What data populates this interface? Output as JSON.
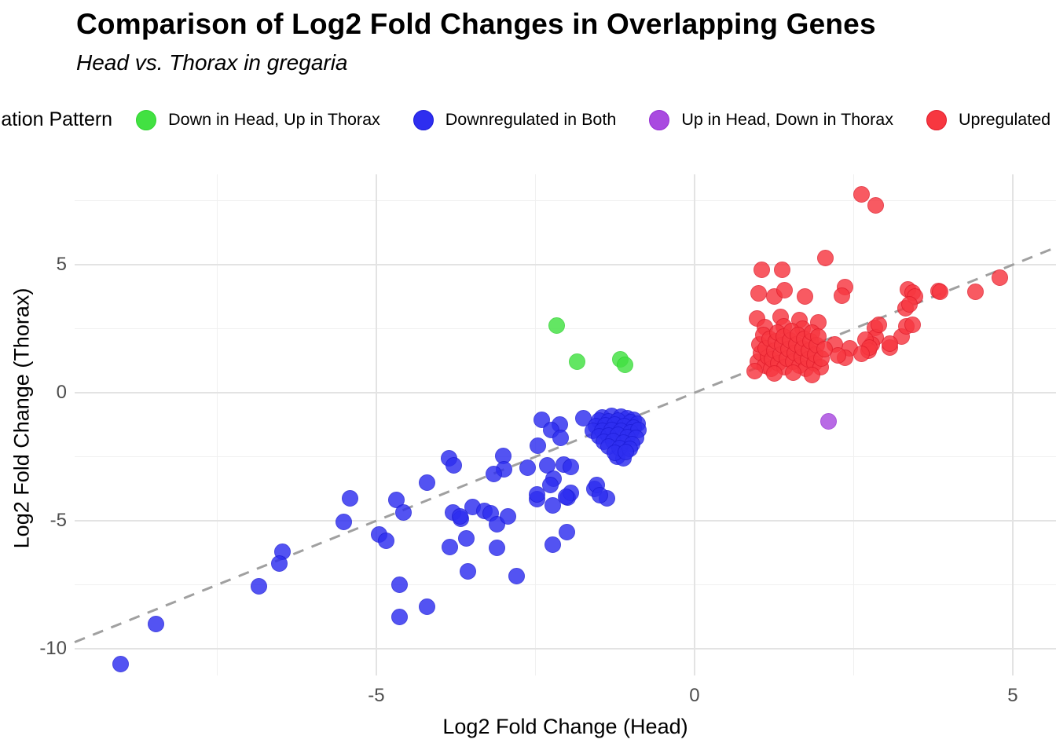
{
  "title": "Comparison of Log2 Fold Changes in Overlapping Genes",
  "subtitle": "Head vs. Thorax in gregaria",
  "legend": {
    "title": "Regulation Pattern",
    "items": [
      {
        "label": "Down in Head, Up in Thorax",
        "color": "#42e142",
        "border": "#2fd32f"
      },
      {
        "label": "Downregulated in Both",
        "color": "#2e2ef0",
        "border": "#1d1dd8"
      },
      {
        "label": "Up in Head, Down in Thorax",
        "color": "#a94ae0",
        "border": "#952fd2"
      },
      {
        "label": "Upregulated in Both",
        "color": "#f73740",
        "border": "#e01d2c"
      }
    ]
  },
  "chart_data": {
    "type": "scatter",
    "title": "Comparison of Log2 Fold Changes in Overlapping Genes",
    "subtitle": "Head vs. Thorax in gregaria",
    "xlabel": "Log2 Fold Change (Head)",
    "ylabel": "Log2 Fold Change (Thorax)",
    "legend_title": "Regulation Pattern",
    "legend_position": "top",
    "grid": "on",
    "xlim": [
      -9.74,
      5.68
    ],
    "ylim": [
      -11.04,
      8.53
    ],
    "x_ticks": [
      -5,
      0,
      5
    ],
    "y_ticks": [
      5,
      0,
      -5,
      -10
    ],
    "x_minor_ticks": [
      -7.5,
      -2.5,
      2.5
    ],
    "y_minor_ticks": [
      7.5,
      2.5,
      -2.5,
      -7.5
    ],
    "reference_line": {
      "type": "identity y=x",
      "style": "dashed",
      "color": "#a0a0a0"
    },
    "point_alpha": 0.82,
    "series": [
      {
        "name": "Down in Head, Up in Thorax",
        "color": "#42e142",
        "points": [
          [
            -2.17,
            2.64
          ],
          [
            -1.85,
            1.2
          ],
          [
            -1.16,
            1.32
          ],
          [
            -1.09,
            1.1
          ]
        ]
      },
      {
        "name": "Downregulated in Both",
        "color": "#2e2ef0",
        "points": [
          [
            -9.02,
            -10.6
          ],
          [
            -8.46,
            -9.02
          ],
          [
            -6.85,
            -7.55
          ],
          [
            -6.48,
            -6.2
          ],
          [
            -6.52,
            -6.68
          ],
          [
            -5.41,
            -4.11
          ],
          [
            -5.51,
            -5.03
          ],
          [
            -4.95,
            -5.52
          ],
          [
            -4.85,
            -5.77
          ],
          [
            -4.69,
            -4.17
          ],
          [
            -4.57,
            -4.66
          ],
          [
            -4.2,
            -3.5
          ],
          [
            -4.2,
            -8.37
          ],
          [
            -4.64,
            -7.49
          ],
          [
            -4.64,
            -8.77
          ],
          [
            -3.86,
            -2.55
          ],
          [
            -3.78,
            -2.85
          ],
          [
            -3.8,
            -4.69
          ],
          [
            -3.67,
            -4.91
          ],
          [
            -3.49,
            -4.45
          ],
          [
            -3.3,
            -4.6
          ],
          [
            -3.85,
            -6.01
          ],
          [
            -3.59,
            -5.7
          ],
          [
            -3.56,
            -6.99
          ],
          [
            -3.69,
            -4.82
          ],
          [
            -3.2,
            -4.72
          ],
          [
            -3.1,
            -5.12
          ],
          [
            -3.1,
            -6.07
          ],
          [
            -2.93,
            -4.82
          ],
          [
            -2.79,
            -7.15
          ],
          [
            -2.48,
            -4.14
          ],
          [
            -2.47,
            -3.96
          ],
          [
            -2.23,
            -4.39
          ],
          [
            -2.23,
            -5.92
          ],
          [
            -2.01,
            -5.43
          ],
          [
            -1.99,
            -4.08
          ],
          [
            -1.37,
            -4.11
          ],
          [
            -1.57,
            -3.77
          ],
          [
            -2.4,
            -1.07
          ],
          [
            -2.12,
            -1.23
          ],
          [
            -2.25,
            -1.44
          ],
          [
            -1.74,
            -0.98
          ],
          [
            -2.11,
            -1.75
          ],
          [
            -2.46,
            -2.06
          ],
          [
            -3.0,
            -2.48
          ],
          [
            -2.99,
            -2.98
          ],
          [
            -3.15,
            -3.16
          ],
          [
            -2.62,
            -2.94
          ],
          [
            -2.31,
            -2.82
          ],
          [
            -2.06,
            -2.79
          ],
          [
            -1.94,
            -2.91
          ],
          [
            -2.21,
            -3.37
          ],
          [
            -2.27,
            -3.59
          ],
          [
            -1.94,
            -3.9
          ],
          [
            -2.02,
            -4.05
          ],
          [
            -1.53,
            -3.59
          ],
          [
            -1.49,
            -3.99
          ],
          [
            -1.22,
            -2.51
          ],
          [
            -1.12,
            -2.55
          ],
          [
            -1.45,
            -0.95
          ],
          [
            -1.3,
            -0.9
          ],
          [
            -1.15,
            -0.92
          ],
          [
            -1.05,
            -1.0
          ],
          [
            -0.95,
            -1.05
          ],
          [
            -1.5,
            -1.1
          ],
          [
            -1.35,
            -1.12
          ],
          [
            -1.2,
            -1.08
          ],
          [
            -1.0,
            -1.15
          ],
          [
            -0.9,
            -1.2
          ],
          [
            -1.55,
            -1.3
          ],
          [
            -1.4,
            -1.28
          ],
          [
            -1.25,
            -1.25
          ],
          [
            -1.1,
            -1.3
          ],
          [
            -0.95,
            -1.35
          ],
          [
            -1.6,
            -1.5
          ],
          [
            -1.45,
            -1.48
          ],
          [
            -1.3,
            -1.45
          ],
          [
            -1.15,
            -1.5
          ],
          [
            -1.0,
            -1.55
          ],
          [
            -0.88,
            -1.45
          ],
          [
            -1.5,
            -1.7
          ],
          [
            -1.35,
            -1.68
          ],
          [
            -1.2,
            -1.65
          ],
          [
            -1.05,
            -1.72
          ],
          [
            -0.92,
            -1.75
          ],
          [
            -1.42,
            -1.9
          ],
          [
            -1.28,
            -1.88
          ],
          [
            -1.12,
            -1.95
          ],
          [
            -0.98,
            -2.0
          ],
          [
            -1.35,
            -2.1
          ],
          [
            -1.18,
            -2.15
          ],
          [
            -1.02,
            -2.2
          ],
          [
            -1.25,
            -2.35
          ],
          [
            -1.08,
            -2.3
          ]
        ]
      },
      {
        "name": "Up in Head, Down in Thorax",
        "color": "#a94ae0",
        "points": [
          [
            2.1,
            -1.13
          ]
        ]
      },
      {
        "name": "Upregulated in Both",
        "color": "#f73740",
        "points": [
          [
            2.63,
            7.76
          ],
          [
            2.85,
            7.33
          ],
          [
            2.06,
            5.25
          ],
          [
            1.06,
            4.79
          ],
          [
            1.38,
            4.79
          ],
          [
            4.8,
            4.51
          ],
          [
            4.41,
            3.93
          ],
          [
            3.83,
            3.96
          ],
          [
            3.35,
            4.05
          ],
          [
            3.43,
            3.9
          ],
          [
            3.31,
            3.31
          ],
          [
            1.01,
            3.87
          ],
          [
            1.25,
            3.77
          ],
          [
            1.41,
            4.02
          ],
          [
            1.73,
            3.77
          ],
          [
            2.36,
            4.14
          ],
          [
            2.31,
            3.8
          ],
          [
            3.46,
            3.77
          ],
          [
            3.38,
            3.44
          ],
          [
            3.86,
            3.93
          ],
          [
            2.84,
            2.52
          ],
          [
            2.85,
            2.18
          ],
          [
            2.79,
            1.9
          ],
          [
            2.69,
            2.06
          ],
          [
            2.74,
            1.63
          ],
          [
            3.07,
            1.78
          ],
          [
            3.26,
            2.21
          ],
          [
            3.33,
            2.58
          ],
          [
            3.43,
            2.67
          ],
          [
            2.9,
            2.67
          ],
          [
            3.07,
            1.93
          ],
          [
            2.75,
            1.78
          ],
          [
            2.44,
            1.75
          ],
          [
            2.37,
            1.38
          ],
          [
            2.63,
            1.53
          ],
          [
            0.98,
            2.9
          ],
          [
            1.35,
            2.95
          ],
          [
            1.65,
            2.85
          ],
          [
            1.95,
            2.75
          ],
          [
            1.1,
            2.55
          ],
          [
            1.4,
            2.6
          ],
          [
            1.7,
            2.5
          ],
          [
            2.2,
            1.9
          ],
          [
            2.25,
            1.45
          ],
          [
            1.0,
            1.2
          ],
          [
            1.05,
            1.55
          ],
          [
            1.02,
            1.9
          ],
          [
            1.08,
            2.25
          ],
          [
            1.1,
            1.05
          ],
          [
            1.15,
            1.4
          ],
          [
            1.12,
            1.75
          ],
          [
            1.18,
            2.1
          ],
          [
            1.2,
            0.95
          ],
          [
            1.22,
            1.3
          ],
          [
            1.25,
            1.65
          ],
          [
            1.28,
            2.0
          ],
          [
            1.3,
            2.35
          ],
          [
            1.32,
            1.15
          ],
          [
            1.35,
            1.5
          ],
          [
            1.38,
            1.85
          ],
          [
            1.4,
            2.2
          ],
          [
            1.42,
            1.0
          ],
          [
            1.45,
            1.35
          ],
          [
            1.48,
            1.7
          ],
          [
            1.5,
            2.05
          ],
          [
            1.52,
            2.4
          ],
          [
            1.55,
            1.2
          ],
          [
            1.58,
            1.55
          ],
          [
            1.6,
            1.9
          ],
          [
            1.62,
            2.25
          ],
          [
            1.65,
            1.05
          ],
          [
            1.68,
            1.4
          ],
          [
            1.7,
            1.75
          ],
          [
            1.72,
            2.1
          ],
          [
            1.75,
            0.95
          ],
          [
            1.78,
            1.3
          ],
          [
            1.8,
            1.65
          ],
          [
            1.82,
            2.0
          ],
          [
            1.85,
            2.35
          ],
          [
            1.88,
            1.15
          ],
          [
            1.9,
            1.5
          ],
          [
            1.92,
            1.85
          ],
          [
            1.95,
            2.2
          ],
          [
            1.98,
            1.0
          ],
          [
            2.0,
            1.35
          ],
          [
            2.05,
            1.7
          ],
          [
            0.95,
            0.85
          ],
          [
            1.25,
            0.75
          ],
          [
            1.55,
            0.8
          ],
          [
            1.85,
            0.7
          ]
        ]
      }
    ]
  },
  "axis": {
    "x_tick_labels": [
      "-5",
      "0",
      "5"
    ],
    "y_tick_labels": [
      "5",
      "0",
      "-5",
      "-10"
    ]
  }
}
